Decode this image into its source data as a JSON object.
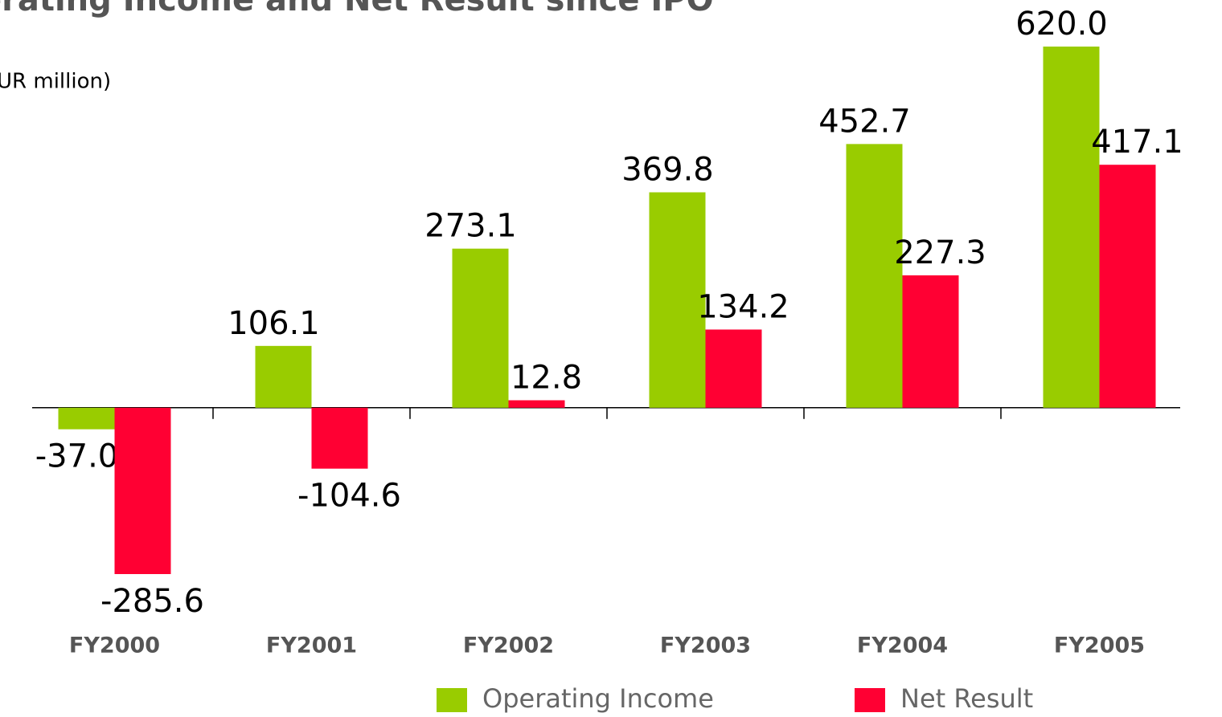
{
  "chart_data": {
    "type": "bar",
    "title": "erating Income and Net Result since IPO",
    "subtitle": "UR million)",
    "categories": [
      "FY2000",
      "FY2001",
      "FY2002",
      "FY2003",
      "FY2004",
      "FY2005"
    ],
    "series": [
      {
        "name": "Operating Income",
        "color": "#99cc00",
        "values": [
          -37.0,
          106.1,
          273.1,
          369.8,
          452.7,
          620.0
        ],
        "value_labels": [
          "-37.0",
          "106.1",
          "273.1",
          "369.8",
          "452.7",
          "620.0"
        ]
      },
      {
        "name": "Net Result",
        "color": "#ff0033",
        "values": [
          -285.6,
          -104.6,
          12.8,
          134.2,
          227.3,
          417.1
        ],
        "value_labels": [
          "-285.6",
          "-104.6",
          "12.8",
          "134.2",
          "227.3",
          "417.1"
        ]
      }
    ]
  }
}
